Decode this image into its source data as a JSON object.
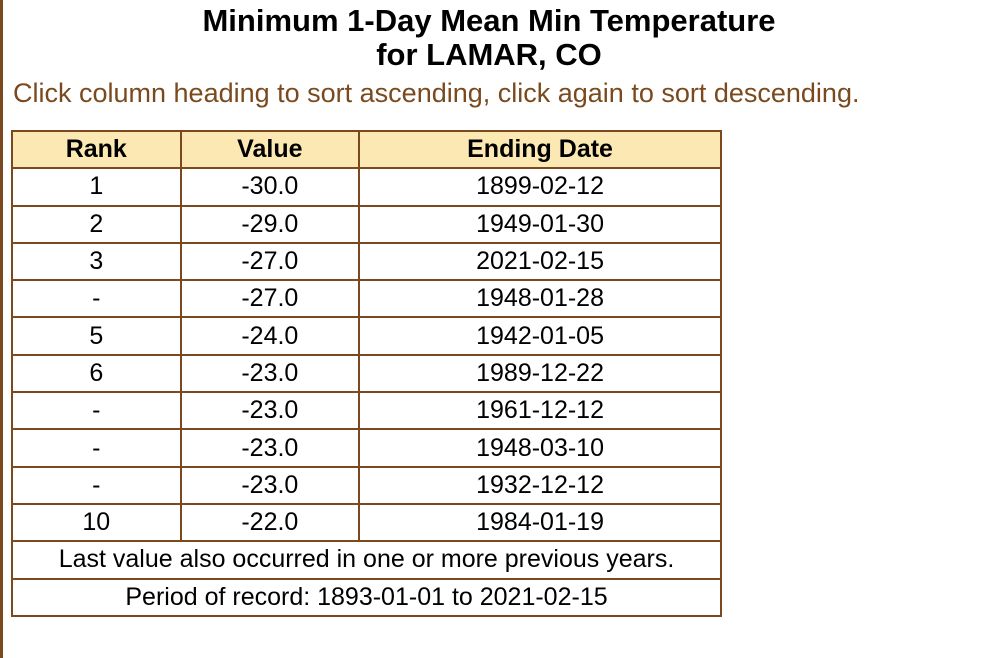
{
  "title_line1": "Minimum 1-Day Mean Min Temperature",
  "title_line2": "for LAMAR, CO",
  "instructions": "Click column heading to sort ascending, click again to sort descending.",
  "table": {
    "headers": [
      "Rank",
      "Value",
      "Ending Date"
    ],
    "rows": [
      {
        "rank": "1",
        "value": "-30.0",
        "date": "1899-02-12"
      },
      {
        "rank": "2",
        "value": "-29.0",
        "date": "1949-01-30"
      },
      {
        "rank": "3",
        "value": "-27.0",
        "date": "2021-02-15"
      },
      {
        "rank": "-",
        "value": "-27.0",
        "date": "1948-01-28"
      },
      {
        "rank": "5",
        "value": "-24.0",
        "date": "1942-01-05"
      },
      {
        "rank": "6",
        "value": "-23.0",
        "date": "1989-12-22"
      },
      {
        "rank": "-",
        "value": "-23.0",
        "date": "1961-12-12"
      },
      {
        "rank": "-",
        "value": "-23.0",
        "date": "1948-03-10"
      },
      {
        "rank": "-",
        "value": "-23.0",
        "date": "1932-12-12"
      },
      {
        "rank": "10",
        "value": "-22.0",
        "date": "1984-01-19"
      }
    ],
    "footnote": "Last value also occurred in one or more previous years.",
    "period": "Period of record: 1893-01-01 to 2021-02-15"
  },
  "colors": {
    "accent_brown": "#7a4a1e",
    "header_bg": "#fce8b2"
  }
}
